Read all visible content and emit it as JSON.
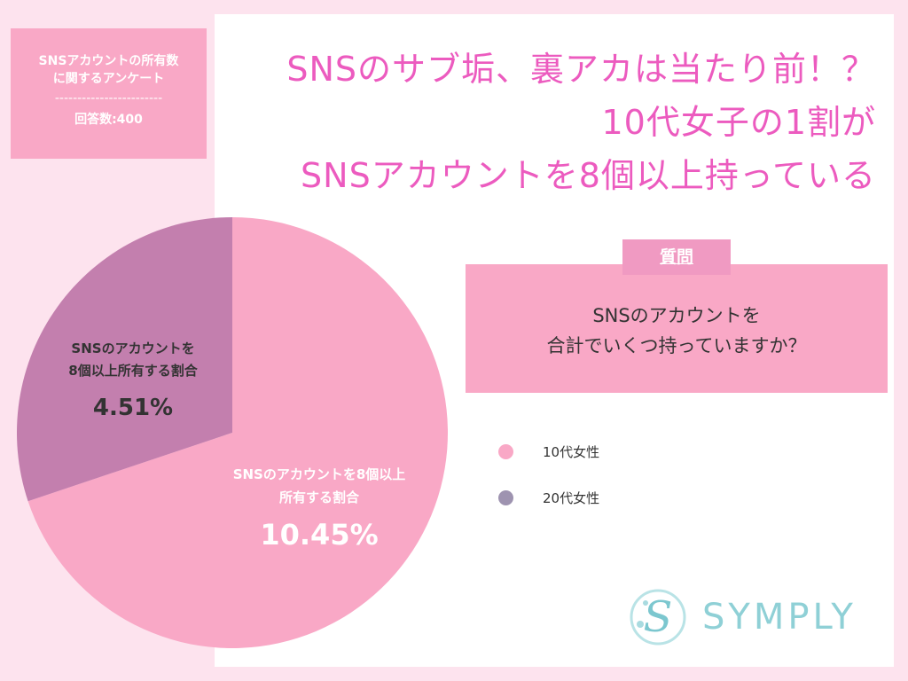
{
  "survey": {
    "title_line1": "SNSアカウントの所有数",
    "title_line2": "に関するアンケート",
    "separator": "------------------------",
    "respondents": "回答数:400"
  },
  "headline": {
    "line1": "SNSのサブ垢、裏アカは当たり前！？",
    "line2": "10代女子の1割が",
    "line3": "SNSアカウントを8個以上持っている"
  },
  "question": {
    "label": "質問",
    "line1": "SNSのアカウントを",
    "line2": "合計でいくつ持っていますか？"
  },
  "logo": {
    "text": "SYMPLY"
  },
  "chart_data": {
    "type": "pie",
    "slices": [
      {
        "legend": "10代女性",
        "label": "SNSのアカウントを8個以上所有する割合",
        "label_line1": "SNSのアカウントを8個以上",
        "label_line2": "所有する割合",
        "value": 10.45,
        "display": "10.45%",
        "color": "#f9a8c6"
      },
      {
        "legend": "20代女性",
        "label": "SNSのアカウントを8個以上所有する割合",
        "label_line1": "SNSのアカウントを",
        "label_line2": "8個以上所有する割合",
        "value": 4.51,
        "display": "4.51%",
        "color": "#c37fae"
      }
    ],
    "legend": [
      {
        "label": "10代女性",
        "color": "#f9a8c6"
      },
      {
        "label": "20代女性",
        "color": "#9e93b0"
      }
    ],
    "legend_position": "right"
  }
}
